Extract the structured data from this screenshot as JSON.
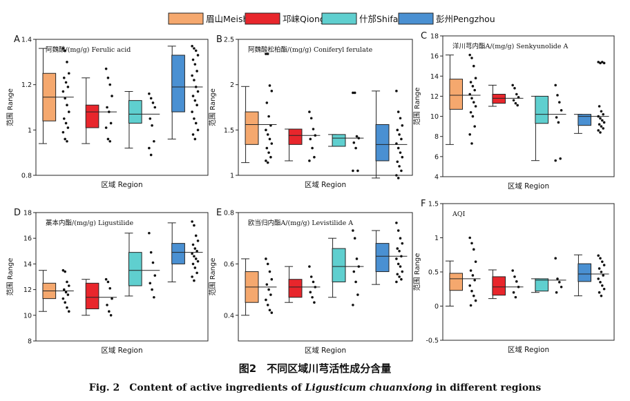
{
  "legend": [
    {
      "label": "眉山Meishan",
      "color": "#F5A86E"
    },
    {
      "label": "邛崃Qionglai",
      "color": "#E8262C"
    },
    {
      "label": "什邡Shifang",
      "color": "#5FCFCF"
    },
    {
      "label": "彭州Pengzhou",
      "color": "#4A90D2"
    }
  ],
  "caption": {
    "zh": "图2　不同区域川芎活性成分含量",
    "en_prefix": "Fig. 2　Content of active ingredients of ",
    "en_species": "Ligusticum chuanxiong",
    "en_suffix": " in different regions"
  },
  "chart_data": [
    {
      "type": "box",
      "panel": "A",
      "title": "阿魏酸/(mg/g) Ferulic acid",
      "xlabel": "区域  Region",
      "ylabel": "范围 Range",
      "ylim": [
        0.8,
        1.4
      ],
      "yticks": [
        0.8,
        1.0,
        1.2,
        1.4
      ],
      "groups": [
        {
          "name": "眉山Meishan",
          "q1": 1.04,
          "q3": 1.25,
          "median": 1.145,
          "whisker_low": 0.94,
          "whisker_high": 1.36,
          "points": [
            1.36,
            1.35,
            1.3,
            1.25,
            1.23,
            1.21,
            1.19,
            1.17,
            1.14,
            1.11,
            1.08,
            1.05,
            1.03,
            1.01,
            0.99,
            0.96,
            0.95
          ]
        },
        {
          "name": "邛崃Qionglai",
          "q1": 1.01,
          "q3": 1.11,
          "median": 1.08,
          "whisker_low": 0.94,
          "whisker_high": 1.23,
          "points": [
            1.27,
            1.23,
            1.2,
            1.15,
            1.1,
            1.08,
            1.03,
            1.01,
            0.96,
            0.95
          ]
        },
        {
          "name": "什邡Shifang",
          "q1": 1.03,
          "q3": 1.13,
          "median": 1.07,
          "whisker_low": 0.92,
          "whisker_high": 1.17,
          "points": [
            1.16,
            1.14,
            1.12,
            1.1,
            1.05,
            1.02,
            0.95,
            0.92,
            0.89
          ]
        },
        {
          "name": "彭州Pengzhou",
          "q1": 1.08,
          "q3": 1.33,
          "median": 1.19,
          "whisker_low": 0.96,
          "whisker_high": 1.37,
          "points": [
            1.37,
            1.36,
            1.35,
            1.33,
            1.31,
            1.29,
            1.26,
            1.24,
            1.22,
            1.19,
            1.17,
            1.15,
            1.13,
            1.11,
            1.08,
            1.05,
            1.03,
            1.0,
            0.98,
            0.96
          ]
        }
      ]
    },
    {
      "type": "box",
      "panel": "B",
      "title": "阿魏酸松柏酯/(mg/g) Coniferyl ferulate",
      "xlabel": "区域  Region",
      "ylabel": "范围 Range",
      "ylim": [
        1.0,
        2.5
      ],
      "yticks": [
        1.0,
        1.5,
        2.0,
        2.5
      ],
      "groups": [
        {
          "name": "眉山Meishan",
          "q1": 1.34,
          "q3": 1.7,
          "median": 1.56,
          "whisker_low": 1.14,
          "whisker_high": 1.98,
          "points": [
            2.34,
            2.34,
            1.99,
            1.93,
            1.8,
            1.65,
            1.55,
            1.5,
            1.45,
            1.4,
            1.35,
            1.3,
            1.25,
            1.2,
            1.16,
            1.14
          ]
        },
        {
          "name": "邛崃Qionglai",
          "q1": 1.34,
          "q3": 1.51,
          "median": 1.44,
          "whisker_low": 1.16,
          "whisker_high": 1.51,
          "points": [
            1.7,
            1.63,
            1.51,
            1.44,
            1.4,
            1.3,
            1.2,
            1.16
          ]
        },
        {
          "name": "什邡Shifang",
          "q1": 1.32,
          "q3": 1.45,
          "median": 1.41,
          "whisker_low": 1.32,
          "whisker_high": 1.45,
          "points": [
            1.91,
            1.91,
            1.43,
            1.41,
            1.36,
            1.3,
            1.05,
            1.05
          ]
        },
        {
          "name": "彭州Pengzhou",
          "q1": 1.16,
          "q3": 1.56,
          "median": 1.34,
          "whisker_low": 0.97,
          "whisker_high": 1.93,
          "points": [
            1.93,
            1.7,
            1.63,
            1.55,
            1.5,
            1.45,
            1.4,
            1.35,
            1.3,
            1.25,
            1.2,
            1.15,
            1.1,
            1.05,
            1.0,
            0.97
          ]
        }
      ]
    },
    {
      "type": "box",
      "panel": "C",
      "title": "洋川芎内酯A/(mg/g) Senkyunolide A",
      "xlabel": "区域  Region",
      "ylabel": "范围 Range",
      "ylim": [
        4,
        18
      ],
      "yticks": [
        4,
        6,
        8,
        10,
        12,
        14,
        16,
        18
      ],
      "groups": [
        {
          "name": "眉山Meishan",
          "q1": 10.7,
          "q3": 13.7,
          "median": 12.1,
          "whisker_low": 7.2,
          "whisker_high": 16.1,
          "points": [
            16.1,
            15.8,
            15.0,
            13.8,
            13.4,
            13.0,
            12.6,
            12.2,
            11.8,
            11.4,
            11.0,
            10.4,
            10.0,
            9.0,
            8.2,
            7.3
          ]
        },
        {
          "name": "邛崃Qionglai",
          "q1": 11.3,
          "q3": 12.2,
          "median": 11.8,
          "whisker_low": 11.0,
          "whisker_high": 13.1,
          "points": [
            13.1,
            12.8,
            12.2,
            11.9,
            11.6,
            11.3,
            11.1
          ]
        },
        {
          "name": "什邡Shifang",
          "q1": 9.3,
          "q3": 12.0,
          "median": 10.2,
          "whisker_low": 5.6,
          "whisker_high": 12.0,
          "points": [
            13.1,
            12.1,
            11.4,
            10.6,
            9.9,
            9.4,
            5.8,
            5.6
          ]
        },
        {
          "name": "彭州Pengzhou",
          "q1": 9.1,
          "q3": 10.2,
          "median": 10.0,
          "whisker_low": 8.3,
          "whisker_high": 10.2,
          "points": [
            15.4,
            15.3,
            15.4,
            15.3,
            11.0,
            10.5,
            10.2,
            10.0,
            9.8,
            9.6,
            9.4,
            9.2,
            9.0,
            8.8,
            8.6,
            8.4
          ]
        }
      ]
    },
    {
      "type": "box",
      "panel": "D",
      "title": "藁本内酯/(mg/g) Ligustilide",
      "xlabel": "区域  Region",
      "ylabel": "范围 Range",
      "ylim": [
        8,
        18
      ],
      "yticks": [
        8,
        10,
        12,
        14,
        16,
        18
      ],
      "groups": [
        {
          "name": "眉山Meishan",
          "q1": 11.3,
          "q3": 12.5,
          "median": 11.9,
          "whisker_low": 10.3,
          "whisker_high": 13.5,
          "points": [
            13.5,
            13.4,
            12.6,
            12.3,
            12.0,
            11.8,
            11.6,
            11.3,
            11.0,
            10.6,
            10.3
          ]
        },
        {
          "name": "邛崃Qionglai",
          "q1": 10.5,
          "q3": 12.5,
          "median": 11.4,
          "whisker_low": 10.0,
          "whisker_high": 12.8,
          "points": [
            12.8,
            12.6,
            12.1,
            11.3,
            10.8,
            10.3,
            10.0
          ]
        },
        {
          "name": "什邡Shifang",
          "q1": 12.3,
          "q3": 14.9,
          "median": 13.5,
          "whisker_low": 11.5,
          "whisker_high": 16.4,
          "points": [
            16.4,
            14.9,
            14.1,
            13.1,
            12.5,
            12.0,
            11.4
          ]
        },
        {
          "name": "彭州Pengzhou",
          "q1": 14.0,
          "q3": 15.6,
          "median": 14.9,
          "whisker_low": 12.6,
          "whisker_high": 17.2,
          "points": [
            17.3,
            17.0,
            16.2,
            15.8,
            15.5,
            15.2,
            15.0,
            14.8,
            14.6,
            14.4,
            14.2,
            14.0,
            13.7,
            13.3,
            13.0,
            12.7
          ]
        }
      ]
    },
    {
      "type": "box",
      "panel": "E",
      "title": "欧当归内酯A/(mg/g) Levistilide A",
      "xlabel": "区域  Region",
      "ylabel": "范围 Range",
      "ylim": [
        0.3,
        0.8
      ],
      "yticks": [
        0.4,
        0.6,
        0.8
      ],
      "groups": [
        {
          "name": "眉山Meishan",
          "q1": 0.45,
          "q3": 0.57,
          "median": 0.51,
          "whisker_low": 0.4,
          "whisker_high": 0.62,
          "points": [
            0.62,
            0.6,
            0.57,
            0.54,
            0.52,
            0.5,
            0.48,
            0.46,
            0.44,
            0.42,
            0.41
          ]
        },
        {
          "name": "邛崃Qionglai",
          "q1": 0.47,
          "q3": 0.54,
          "median": 0.51,
          "whisker_low": 0.45,
          "whisker_high": 0.59,
          "points": [
            0.59,
            0.55,
            0.53,
            0.51,
            0.49,
            0.47,
            0.45
          ]
        },
        {
          "name": "什邡Shifang",
          "q1": 0.53,
          "q3": 0.66,
          "median": 0.59,
          "whisker_low": 0.47,
          "whisker_high": 0.7,
          "points": [
            0.73,
            0.7,
            0.62,
            0.59,
            0.57,
            0.53,
            0.48,
            0.44
          ]
        },
        {
          "name": "彭州Pengzhou",
          "q1": 0.57,
          "q3": 0.68,
          "median": 0.63,
          "whisker_low": 0.52,
          "whisker_high": 0.73,
          "points": [
            0.76,
            0.73,
            0.7,
            0.68,
            0.66,
            0.65,
            0.63,
            0.62,
            0.6,
            0.59,
            0.57,
            0.56,
            0.55,
            0.54,
            0.53
          ]
        }
      ]
    },
    {
      "type": "box",
      "panel": "F",
      "title": "AQI",
      "xlabel": "区域  Region",
      "ylabel": "范围 Range",
      "ylim": [
        -0.5,
        1.5
      ],
      "yticks": [
        -0.5,
        0.0,
        0.5,
        1.0,
        1.5
      ],
      "groups": [
        {
          "name": "眉山Meishan",
          "q1": 0.23,
          "q3": 0.48,
          "median": 0.4,
          "whisker_low": 0.0,
          "whisker_high": 0.66,
          "points": [
            1.0,
            0.92,
            0.83,
            0.65,
            0.52,
            0.45,
            0.38,
            0.3,
            0.22,
            0.15,
            0.08,
            0.01
          ]
        },
        {
          "name": "邛崃Qionglai",
          "q1": 0.16,
          "q3": 0.43,
          "median": 0.28,
          "whisker_low": 0.11,
          "whisker_high": 0.53,
          "points": [
            0.52,
            0.43,
            0.36,
            0.28,
            0.2,
            0.13
          ]
        },
        {
          "name": "什邡Shifang",
          "q1": 0.22,
          "q3": 0.4,
          "median": 0.38,
          "whisker_low": 0.2,
          "whisker_high": 0.4,
          "points": [
            0.7,
            0.4,
            0.35,
            0.28,
            0.2
          ]
        },
        {
          "name": "彭州Pengzhou",
          "q1": 0.36,
          "q3": 0.62,
          "median": 0.47,
          "whisker_low": 0.15,
          "whisker_high": 0.75,
          "points": [
            0.74,
            0.7,
            0.65,
            0.6,
            0.55,
            0.5,
            0.45,
            0.4,
            0.35,
            0.3,
            0.25,
            0.2,
            0.15
          ]
        }
      ]
    }
  ]
}
